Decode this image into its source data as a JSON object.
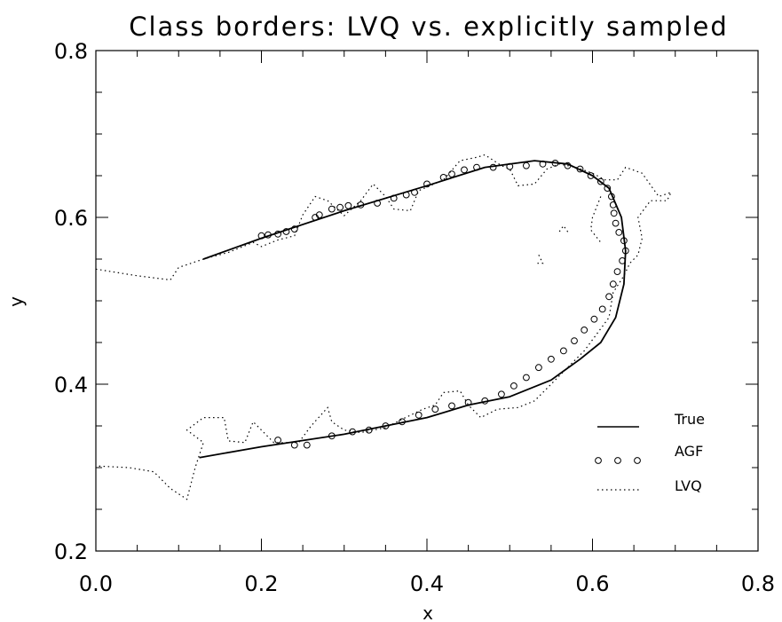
{
  "chart_data": {
    "type": "line",
    "title": "Class borders: LVQ vs. explicitly sampled",
    "xlabel": "x",
    "ylabel": "y",
    "xlim": [
      0.0,
      0.8
    ],
    "ylim": [
      0.2,
      0.8
    ],
    "xticks": [
      "0.0",
      "0.2",
      "0.4",
      "0.6",
      "0.8"
    ],
    "yticks": [
      "0.2",
      "0.4",
      "0.6",
      "0.8"
    ],
    "grid": false,
    "legend_position": "bottom-right",
    "series": [
      {
        "name": "True",
        "style": "solid",
        "points": [
          [
            0.13,
            0.55
          ],
          [
            0.2,
            0.575
          ],
          [
            0.3,
            0.608
          ],
          [
            0.4,
            0.638
          ],
          [
            0.47,
            0.66
          ],
          [
            0.53,
            0.668
          ],
          [
            0.57,
            0.664
          ],
          [
            0.6,
            0.65
          ],
          [
            0.62,
            0.635
          ],
          [
            0.635,
            0.6
          ],
          [
            0.64,
            0.56
          ],
          [
            0.638,
            0.52
          ],
          [
            0.628,
            0.48
          ],
          [
            0.61,
            0.45
          ],
          [
            0.585,
            0.43
          ],
          [
            0.55,
            0.405
          ],
          [
            0.5,
            0.385
          ],
          [
            0.45,
            0.375
          ],
          [
            0.4,
            0.36
          ],
          [
            0.3,
            0.34
          ],
          [
            0.2,
            0.325
          ],
          [
            0.125,
            0.312
          ]
        ]
      },
      {
        "name": "AGF",
        "style": "markers",
        "points": [
          [
            0.2,
            0.578
          ],
          [
            0.208,
            0.579
          ],
          [
            0.22,
            0.58
          ],
          [
            0.23,
            0.583
          ],
          [
            0.24,
            0.586
          ],
          [
            0.265,
            0.6
          ],
          [
            0.27,
            0.603
          ],
          [
            0.285,
            0.61
          ],
          [
            0.295,
            0.612
          ],
          [
            0.305,
            0.614
          ],
          [
            0.32,
            0.615
          ],
          [
            0.34,
            0.617
          ],
          [
            0.36,
            0.623
          ],
          [
            0.375,
            0.627
          ],
          [
            0.385,
            0.63
          ],
          [
            0.4,
            0.64
          ],
          [
            0.42,
            0.648
          ],
          [
            0.43,
            0.652
          ],
          [
            0.445,
            0.657
          ],
          [
            0.46,
            0.66
          ],
          [
            0.48,
            0.66
          ],
          [
            0.5,
            0.661
          ],
          [
            0.52,
            0.662
          ],
          [
            0.54,
            0.664
          ],
          [
            0.555,
            0.665
          ],
          [
            0.57,
            0.662
          ],
          [
            0.585,
            0.658
          ],
          [
            0.598,
            0.65
          ],
          [
            0.61,
            0.643
          ],
          [
            0.618,
            0.635
          ],
          [
            0.623,
            0.625
          ],
          [
            0.625,
            0.615
          ],
          [
            0.626,
            0.605
          ],
          [
            0.628,
            0.593
          ],
          [
            0.632,
            0.582
          ],
          [
            0.638,
            0.572
          ],
          [
            0.64,
            0.56
          ],
          [
            0.636,
            0.548
          ],
          [
            0.63,
            0.535
          ],
          [
            0.625,
            0.52
          ],
          [
            0.62,
            0.505
          ],
          [
            0.612,
            0.49
          ],
          [
            0.602,
            0.478
          ],
          [
            0.59,
            0.465
          ],
          [
            0.578,
            0.452
          ],
          [
            0.565,
            0.44
          ],
          [
            0.55,
            0.43
          ],
          [
            0.535,
            0.42
          ],
          [
            0.52,
            0.408
          ],
          [
            0.505,
            0.398
          ],
          [
            0.49,
            0.388
          ],
          [
            0.47,
            0.38
          ],
          [
            0.45,
            0.378
          ],
          [
            0.43,
            0.374
          ],
          [
            0.41,
            0.37
          ],
          [
            0.39,
            0.363
          ],
          [
            0.37,
            0.355
          ],
          [
            0.35,
            0.35
          ],
          [
            0.33,
            0.345
          ],
          [
            0.31,
            0.343
          ],
          [
            0.285,
            0.338
          ],
          [
            0.255,
            0.327
          ],
          [
            0.24,
            0.327
          ],
          [
            0.22,
            0.333
          ]
        ]
      },
      {
        "name": "LVQ",
        "style": "dotted",
        "segments": [
          [
            [
              0.0,
              0.538
            ],
            [
              0.05,
              0.53
            ],
            [
              0.09,
              0.525
            ],
            [
              0.1,
              0.54
            ],
            [
              0.13,
              0.55
            ],
            [
              0.16,
              0.558
            ],
            [
              0.19,
              0.57
            ],
            [
              0.2,
              0.565
            ],
            [
              0.22,
              0.573
            ],
            [
              0.24,
              0.578
            ],
            [
              0.25,
              0.603
            ],
            [
              0.265,
              0.625
            ],
            [
              0.28,
              0.62
            ],
            [
              0.3,
              0.602
            ],
            [
              0.32,
              0.62
            ],
            [
              0.335,
              0.64
            ],
            [
              0.35,
              0.625
            ],
            [
              0.36,
              0.61
            ],
            [
              0.38,
              0.608
            ],
            [
              0.39,
              0.632
            ],
            [
              0.42,
              0.645
            ],
            [
              0.44,
              0.668
            ],
            [
              0.46,
              0.672
            ],
            [
              0.47,
              0.675
            ],
            [
              0.49,
              0.662
            ],
            [
              0.5,
              0.658
            ],
            [
              0.51,
              0.638
            ],
            [
              0.53,
              0.64
            ],
            [
              0.545,
              0.658
            ],
            [
              0.56,
              0.664
            ],
            [
              0.58,
              0.66
            ],
            [
              0.6,
              0.653
            ],
            [
              0.615,
              0.645
            ],
            [
              0.63,
              0.645
            ],
            [
              0.64,
              0.66
            ],
            [
              0.66,
              0.653
            ],
            [
              0.68,
              0.625
            ],
            [
              0.695,
              0.63
            ],
            [
              0.69,
              0.62
            ],
            [
              0.67,
              0.62
            ],
            [
              0.655,
              0.6
            ],
            [
              0.66,
              0.575
            ],
            [
              0.655,
              0.555
            ],
            [
              0.645,
              0.545
            ],
            [
              0.638,
              0.53
            ],
            [
              0.625,
              0.51
            ],
            [
              0.62,
              0.48
            ],
            [
              0.605,
              0.46
            ],
            [
              0.59,
              0.44
            ],
            [
              0.57,
              0.42
            ],
            [
              0.555,
              0.405
            ],
            [
              0.545,
              0.395
            ],
            [
              0.53,
              0.38
            ],
            [
              0.51,
              0.372
            ],
            [
              0.485,
              0.37
            ],
            [
              0.465,
              0.36
            ],
            [
              0.45,
              0.375
            ],
            [
              0.44,
              0.392
            ],
            [
              0.42,
              0.39
            ],
            [
              0.41,
              0.375
            ],
            [
              0.395,
              0.37
            ],
            [
              0.37,
              0.358
            ],
            [
              0.35,
              0.348
            ],
            [
              0.32,
              0.342
            ],
            [
              0.3,
              0.345
            ],
            [
              0.285,
              0.355
            ],
            [
              0.28,
              0.372
            ],
            [
              0.26,
              0.35
            ],
            [
              0.245,
              0.33
            ],
            [
              0.215,
              0.33
            ],
            [
              0.19,
              0.355
            ],
            [
              0.18,
              0.33
            ],
            [
              0.16,
              0.332
            ],
            [
              0.155,
              0.36
            ],
            [
              0.13,
              0.36
            ],
            [
              0.11,
              0.345
            ],
            [
              0.13,
              0.33
            ],
            [
              0.12,
              0.3
            ],
            [
              0.11,
              0.262
            ],
            [
              0.09,
              0.275
            ],
            [
              0.07,
              0.295
            ],
            [
              0.04,
              0.3
            ],
            [
              0.0,
              0.302
            ]
          ],
          [
            [
              0.56,
              0.583
            ],
            [
              0.565,
              0.59
            ],
            [
              0.572,
              0.58
            ]
          ],
          [
            [
              0.535,
              0.555
            ],
            [
              0.54,
              0.545
            ],
            [
              0.532,
              0.545
            ]
          ],
          [
            [
              0.61,
              0.625
            ],
            [
              0.6,
              0.6
            ],
            [
              0.598,
              0.585
            ],
            [
              0.61,
              0.57
            ]
          ]
        ]
      }
    ]
  }
}
